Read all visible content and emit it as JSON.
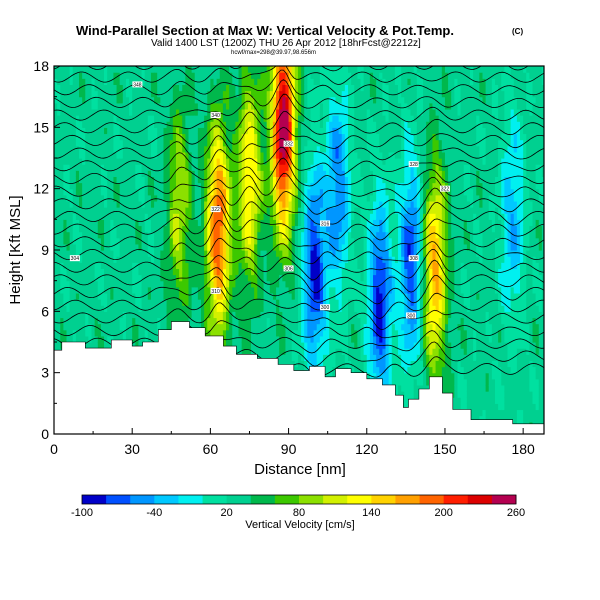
{
  "chart_data": {
    "type": "heatmap",
    "title": "Wind-Parallel Section at Max W: Vertical Velocity & Pot.Temp.",
    "title_tag": "(C)",
    "subtitle": "Valid 1400 LST (1200Z) THU 26 Apr 2012 [18hrFcst@2212z]",
    "subtitle2": "hcwf/max=298@39.97,98.656m",
    "xlabel": "Distance [nm]",
    "ylabel": "Height [Kft MSL]",
    "xlim": [
      0,
      188
    ],
    "ylim": [
      0,
      18
    ],
    "xticks": [
      "0",
      "30",
      "60",
      "90",
      "120",
      "150",
      "180"
    ],
    "yticks": [
      "0",
      "3",
      "6",
      "9",
      "12",
      "15",
      "18"
    ],
    "colorbar": {
      "label": "Vertical Velocity [cm/s]",
      "tick_labels": [
        "-100",
        "-40",
        "20",
        "80",
        "140",
        "200",
        "260"
      ],
      "tick_values": [
        -100,
        -40,
        20,
        80,
        140,
        200,
        260
      ],
      "levels": [
        -100,
        -80,
        -60,
        -40,
        -20,
        0,
        20,
        40,
        60,
        80,
        100,
        120,
        140,
        160,
        180,
        200,
        220,
        240,
        260
      ],
      "colors": [
        "#0000c8",
        "#0050ff",
        "#0096ff",
        "#00c8ff",
        "#00f0f0",
        "#00e0a0",
        "#00d090",
        "#00b84c",
        "#3cc800",
        "#8ce000",
        "#d2f000",
        "#ffff00",
        "#ffd200",
        "#ffa000",
        "#ff6400",
        "#ff1e00",
        "#dc0000",
        "#b40050"
      ]
    },
    "terrain_profile": [
      [
        0,
        4.1
      ],
      [
        3,
        4.1
      ],
      [
        3,
        4.5
      ],
      [
        12,
        4.5
      ],
      [
        12,
        4.2
      ],
      [
        22,
        4.2
      ],
      [
        22,
        4.6
      ],
      [
        30,
        4.6
      ],
      [
        30,
        4.3
      ],
      [
        34,
        4.3
      ],
      [
        34,
        4.5
      ],
      [
        40,
        4.5
      ],
      [
        40,
        5.1
      ],
      [
        45,
        5.1
      ],
      [
        45,
        5.5
      ],
      [
        52,
        5.5
      ],
      [
        52,
        5.2
      ],
      [
        58,
        5.2
      ],
      [
        58,
        4.8
      ],
      [
        65,
        4.8
      ],
      [
        65,
        4.3
      ],
      [
        70,
        4.3
      ],
      [
        70,
        3.9
      ],
      [
        78,
        3.9
      ],
      [
        78,
        3.7
      ],
      [
        86,
        3.7
      ],
      [
        86,
        3.4
      ],
      [
        92,
        3.4
      ],
      [
        92,
        3.1
      ],
      [
        98,
        3.1
      ],
      [
        98,
        3.3
      ],
      [
        104,
        3.3
      ],
      [
        104,
        2.8
      ],
      [
        108,
        2.8
      ],
      [
        108,
        3.2
      ],
      [
        114,
        3.2
      ],
      [
        114,
        3.0
      ],
      [
        120,
        3.0
      ],
      [
        120,
        2.7
      ],
      [
        126,
        2.7
      ],
      [
        126,
        2.4
      ],
      [
        131,
        2.4
      ],
      [
        131,
        1.9
      ],
      [
        134,
        1.9
      ],
      [
        134,
        1.3
      ],
      [
        136,
        1.3
      ],
      [
        136,
        1.7
      ],
      [
        140,
        1.7
      ],
      [
        140,
        2.2
      ],
      [
        144,
        2.2
      ],
      [
        144,
        2.8
      ],
      [
        149,
        2.8
      ],
      [
        149,
        2.0
      ],
      [
        153,
        2.0
      ],
      [
        153,
        1.2
      ],
      [
        160,
        1.2
      ],
      [
        160,
        0.7
      ],
      [
        176,
        0.7
      ],
      [
        176,
        0.5
      ],
      [
        188,
        0.5
      ]
    ],
    "updraft_cores": [
      {
        "x": 88,
        "z": 15.0,
        "w": 260
      },
      {
        "x": 63,
        "z": 10.0,
        "w": 200
      },
      {
        "x": 146,
        "z": 8.0,
        "w": 160
      },
      {
        "x": 75,
        "z": 12.5,
        "w": 140
      },
      {
        "x": 48,
        "z": 11.0,
        "w": 100
      }
    ],
    "downdraft_cores": [
      {
        "x": 100,
        "z": 8.0,
        "w": -90
      },
      {
        "x": 125,
        "z": 6.5,
        "w": -90
      },
      {
        "x": 137,
        "z": 8.5,
        "w": -80
      },
      {
        "x": 109,
        "z": 12.0,
        "w": -60
      },
      {
        "x": 176,
        "z": 10.5,
        "w": -40
      }
    ],
    "theta_isentrope_labels": [
      {
        "x": 8,
        "z": 8.6,
        "text": "304"
      },
      {
        "x": 32,
        "z": 17.1,
        "text": "348"
      },
      {
        "x": 62,
        "z": 7.0,
        "text": "310"
      },
      {
        "x": 62,
        "z": 11.0,
        "text": "322"
      },
      {
        "x": 62,
        "z": 15.6,
        "text": "340"
      },
      {
        "x": 90,
        "z": 8.1,
        "text": "306"
      },
      {
        "x": 90,
        "z": 14.2,
        "text": "332"
      },
      {
        "x": 104,
        "z": 6.2,
        "text": "300"
      },
      {
        "x": 104,
        "z": 10.3,
        "text": "316"
      },
      {
        "x": 137,
        "z": 5.8,
        "text": "300"
      },
      {
        "x": 138,
        "z": 8.6,
        "text": "308"
      },
      {
        "x": 138,
        "z": 13.2,
        "text": "328"
      },
      {
        "x": 150,
        "z": 12.0,
        "text": "322"
      }
    ]
  }
}
